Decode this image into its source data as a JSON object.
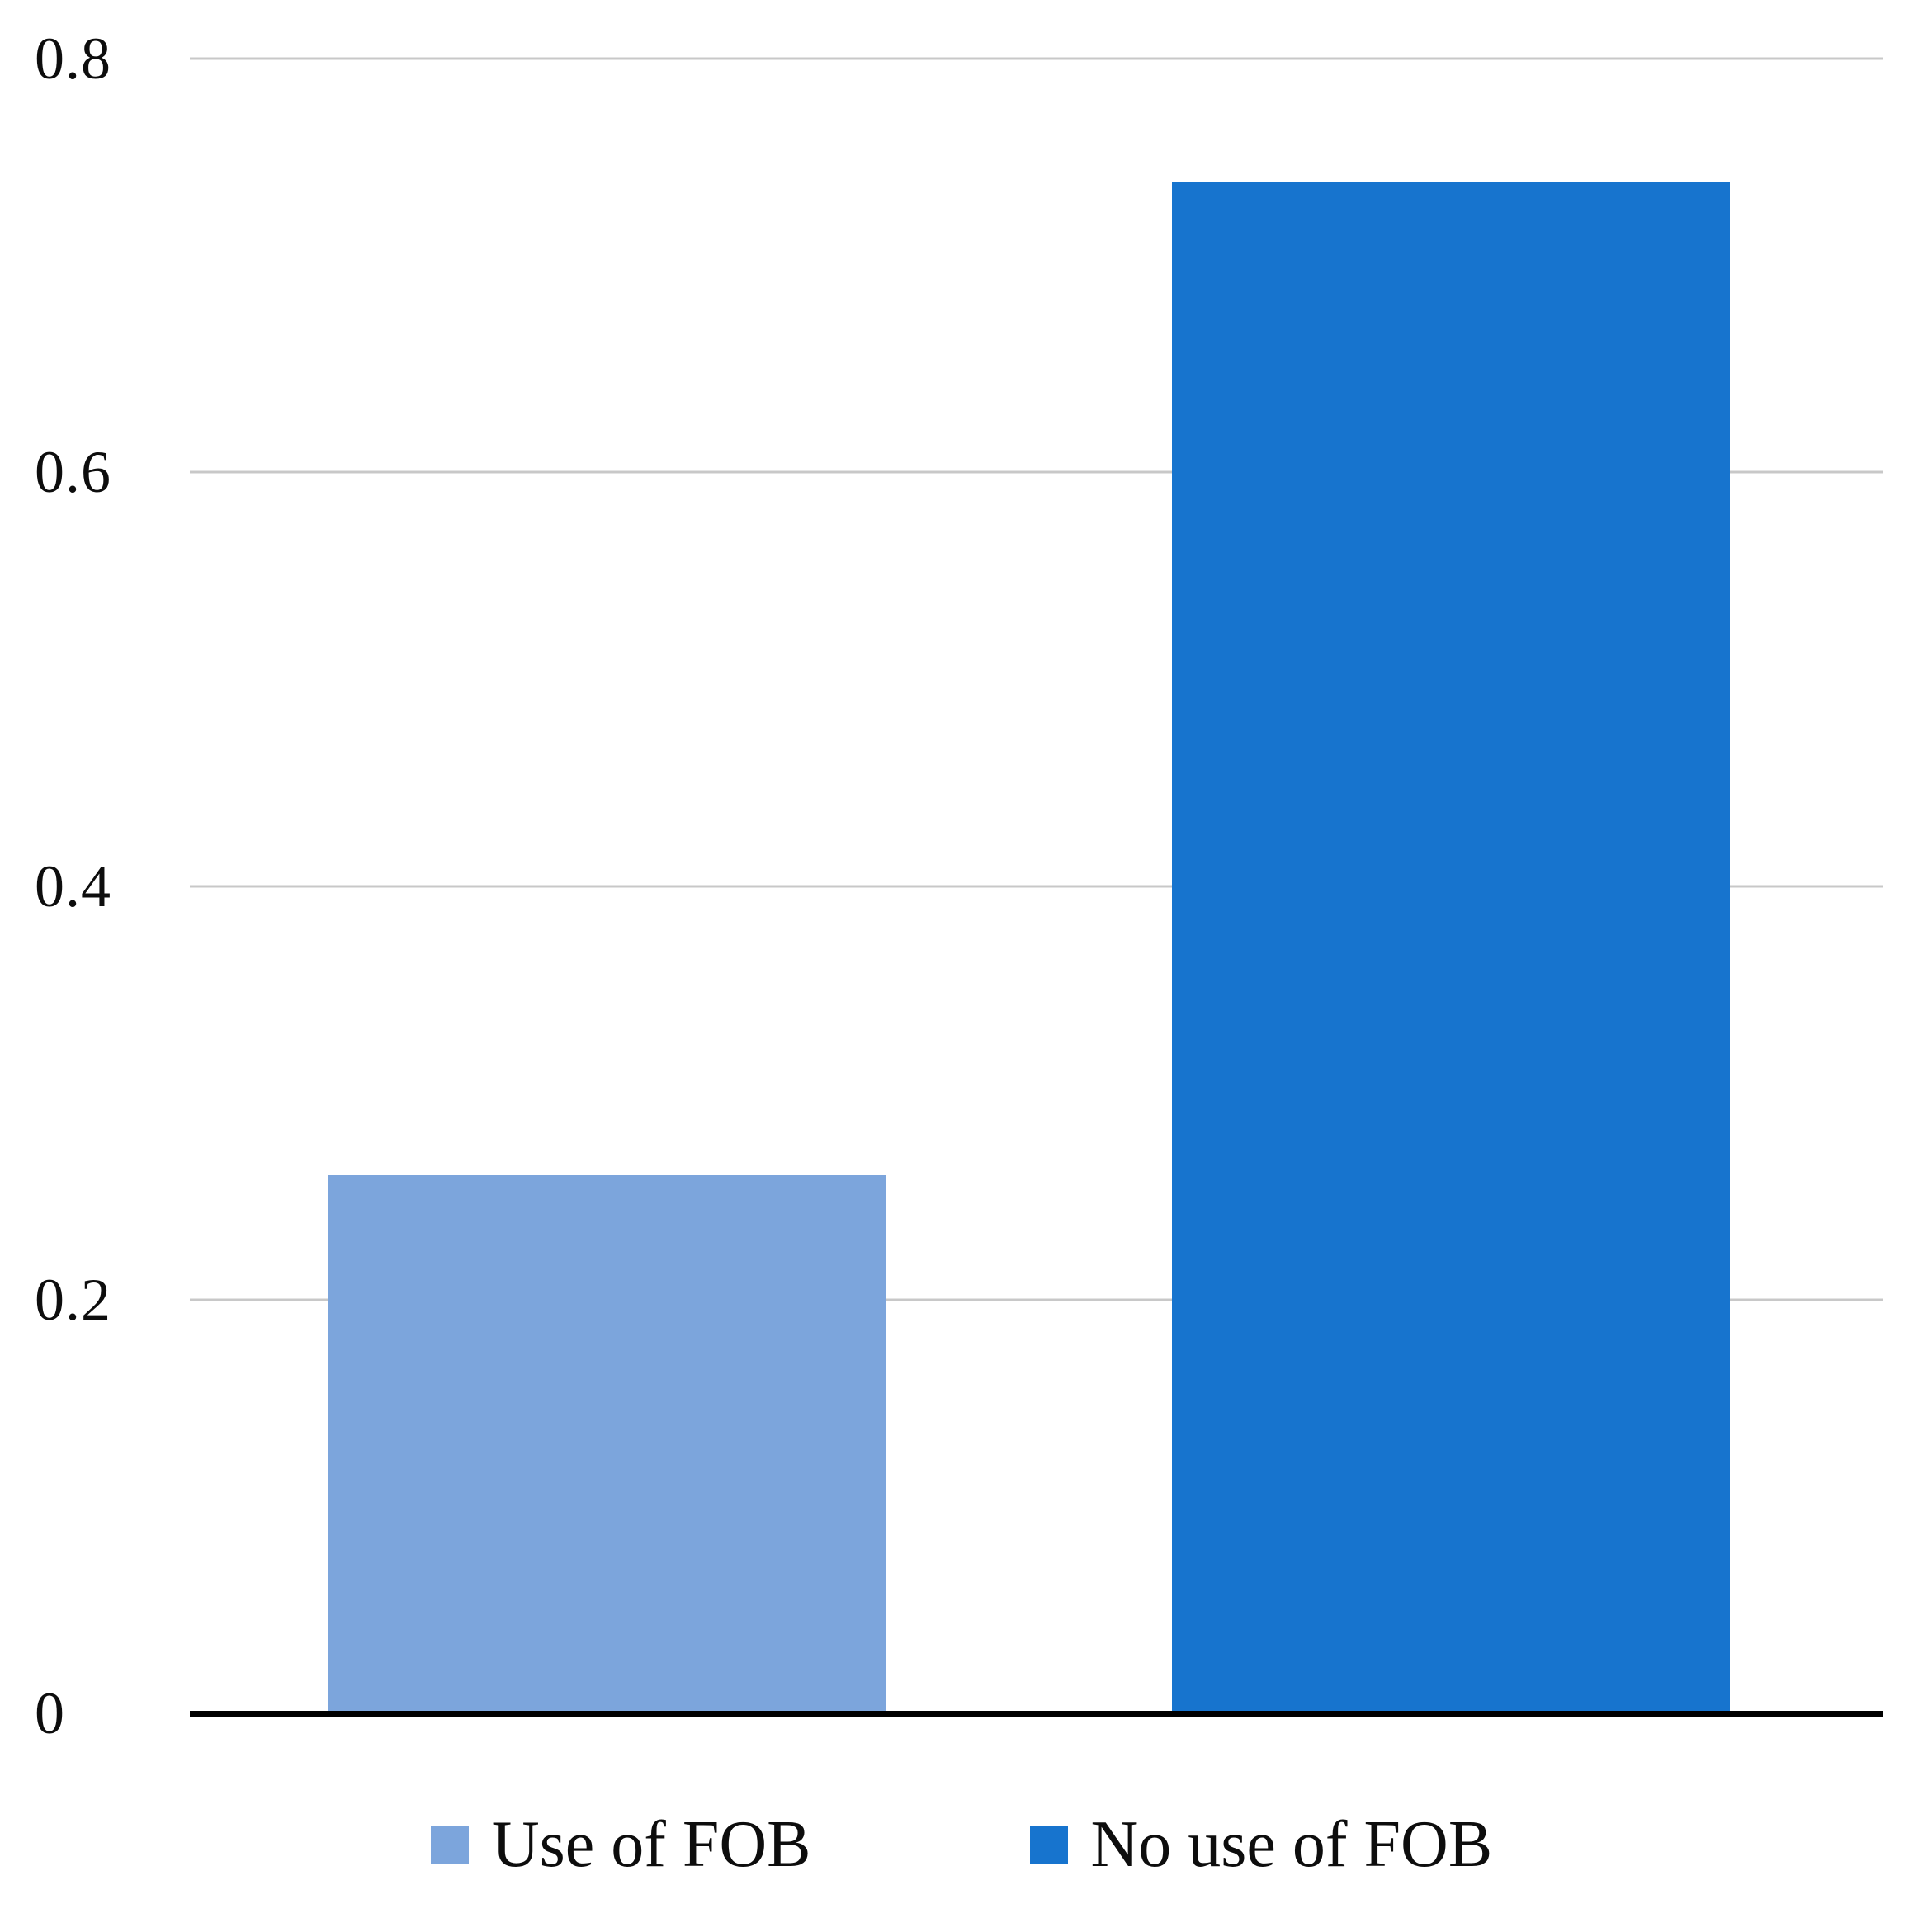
{
  "chart_data": {
    "type": "bar",
    "categories": [
      "Use of FOB",
      "No use of FOB"
    ],
    "values": [
      0.26,
      0.74
    ],
    "colors": [
      "#7CA5DC",
      "#1774CE"
    ],
    "title": "",
    "xlabel": "",
    "ylabel": "",
    "ylim": [
      0,
      0.8
    ],
    "yticks": [
      0,
      0.2,
      0.4,
      0.6,
      0.8
    ],
    "ytick_labels": [
      "0",
      "0.2",
      "0.4",
      "0.6",
      "0.8"
    ],
    "grid": true,
    "legend_position": "bottom"
  },
  "legend": {
    "items": [
      {
        "label": "Use of FOB",
        "color": "#7CA5DC"
      },
      {
        "label": "No use of FOB",
        "color": "#1774CE"
      }
    ]
  },
  "colors": {
    "gridline": "#c8c8c8",
    "axis": "#000000",
    "background": "#ffffff"
  }
}
